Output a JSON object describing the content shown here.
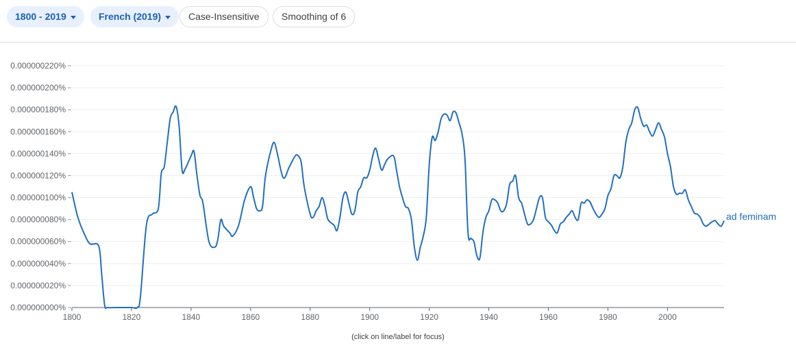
{
  "controls": {
    "date_range": "1800 - 2019",
    "corpus": "French (2019)",
    "case_toggle": "Case-Insensitive",
    "smoothing": "Smoothing of 6"
  },
  "colors": {
    "series": "#1f6fbf",
    "chip_fill": "#e8f0fe",
    "chip_text": "#1a5fb4",
    "grid": "#eeeeee"
  },
  "chart_data": {
    "type": "line",
    "title": "",
    "xlabel": "",
    "ylabel": "",
    "xlim": [
      1800,
      2019
    ],
    "ylim": [
      0,
      2.2e-07
    ],
    "x_ticks": [
      "1800",
      "1820",
      "1840",
      "1860",
      "1880",
      "1900",
      "1920",
      "1940",
      "1960",
      "1980",
      "2000"
    ],
    "y_ticks": [
      "0.000000000%",
      "0.000000020%",
      "0.000000040%",
      "0.000000060%",
      "0.000000080%",
      "0.000000100%",
      "0.000000120%",
      "0.000000140%",
      "0.000000160%",
      "0.000000180%",
      "0.000000200%",
      "0.000000220%"
    ],
    "grid": true,
    "y_unit": "percent",
    "series": [
      {
        "name": "ad feminam",
        "points": [
          [
            1800,
            1.05e-07
          ],
          [
            1802,
            8.2e-08
          ],
          [
            1804,
            6.8e-08
          ],
          [
            1806,
            5.8e-08
          ],
          [
            1809,
            5.6e-08
          ],
          [
            1810,
            3e-08
          ],
          [
            1811,
            2e-09
          ],
          [
            1812,
            0.0
          ],
          [
            1815,
            0.0
          ],
          [
            1820,
            0.0
          ],
          [
            1822,
            0.0
          ],
          [
            1823,
            1e-08
          ],
          [
            1825,
            7.5e-08
          ],
          [
            1827,
            8.5e-08
          ],
          [
            1829,
            9e-08
          ],
          [
            1830,
            1.22e-07
          ],
          [
            1831,
            1.28e-07
          ],
          [
            1832,
            1.5e-07
          ],
          [
            1833,
            1.72e-07
          ],
          [
            1834,
            1.78e-07
          ],
          [
            1835,
            1.83e-07
          ],
          [
            1836,
            1.65e-07
          ],
          [
            1837,
            1.25e-07
          ],
          [
            1838,
            1.26e-07
          ],
          [
            1840,
            1.38e-07
          ],
          [
            1841,
            1.42e-07
          ],
          [
            1842,
            1.2e-07
          ],
          [
            1843,
            1.02e-07
          ],
          [
            1844,
            9.5e-08
          ],
          [
            1846,
            6e-08
          ],
          [
            1848,
            5.5e-08
          ],
          [
            1849,
            6.2e-08
          ],
          [
            1850,
            8e-08
          ],
          [
            1851,
            7.4e-08
          ],
          [
            1853,
            6.8e-08
          ],
          [
            1854,
            6.5e-08
          ],
          [
            1856,
            7.5e-08
          ],
          [
            1858,
            9.8e-08
          ],
          [
            1860,
            1.1e-07
          ],
          [
            1861,
            1e-07
          ],
          [
            1862,
            9e-08
          ],
          [
            1863,
            8.8e-08
          ],
          [
            1864,
            9.2e-08
          ],
          [
            1865,
            1.2e-07
          ],
          [
            1867,
            1.45e-07
          ],
          [
            1868,
            1.5e-07
          ],
          [
            1869,
            1.4e-07
          ],
          [
            1871,
            1.18e-07
          ],
          [
            1873,
            1.28e-07
          ],
          [
            1875,
            1.38e-07
          ],
          [
            1876,
            1.38e-07
          ],
          [
            1877,
            1.32e-07
          ],
          [
            1878,
            1.1e-07
          ],
          [
            1880,
            8.5e-08
          ],
          [
            1881,
            8.2e-08
          ],
          [
            1882,
            8.8e-08
          ],
          [
            1883,
            9.2e-08
          ],
          [
            1884,
            1e-07
          ],
          [
            1885,
            9.2e-08
          ],
          [
            1886,
            8e-08
          ],
          [
            1888,
            7.5e-08
          ],
          [
            1889,
            7e-08
          ],
          [
            1890,
            8.2e-08
          ],
          [
            1891,
            1e-07
          ],
          [
            1892,
            1.05e-07
          ],
          [
            1893,
            9.5e-08
          ],
          [
            1894,
            8.5e-08
          ],
          [
            1895,
            8.8e-08
          ],
          [
            1896,
            1.05e-07
          ],
          [
            1897,
            1.1e-07
          ],
          [
            1898,
            1.18e-07
          ],
          [
            1899,
            1.18e-07
          ],
          [
            1900,
            1.25e-07
          ],
          [
            1901,
            1.38e-07
          ],
          [
            1902,
            1.45e-07
          ],
          [
            1903,
            1.35e-07
          ],
          [
            1904,
            1.25e-07
          ],
          [
            1905,
            1.3e-07
          ],
          [
            1906,
            1.35e-07
          ],
          [
            1908,
            1.38e-07
          ],
          [
            1909,
            1.25e-07
          ],
          [
            1910,
            1.1e-07
          ],
          [
            1911,
            1e-07
          ],
          [
            1912,
            9.2e-08
          ],
          [
            1913,
            9e-08
          ],
          [
            1914,
            8e-08
          ],
          [
            1915,
            5.5e-08
          ],
          [
            1916,
            4.3e-08
          ],
          [
            1917,
            5.5e-08
          ],
          [
            1918,
            6.5e-08
          ],
          [
            1919,
            8.2e-08
          ],
          [
            1920,
            1.3e-07
          ],
          [
            1921,
            1.55e-07
          ],
          [
            1922,
            1.52e-07
          ],
          [
            1923,
            1.6e-07
          ],
          [
            1924,
            1.72e-07
          ],
          [
            1925,
            1.76e-07
          ],
          [
            1926,
            1.75e-07
          ],
          [
            1927,
            1.7e-07
          ],
          [
            1928,
            1.78e-07
          ],
          [
            1929,
            1.77e-07
          ],
          [
            1930,
            1.68e-07
          ],
          [
            1931,
            1.58e-07
          ],
          [
            1932,
            1.35e-07
          ],
          [
            1933,
            6.8e-08
          ],
          [
            1934,
            6.3e-08
          ],
          [
            1935,
            6e-08
          ],
          [
            1936,
            4.7e-08
          ],
          [
            1937,
            4.5e-08
          ],
          [
            1938,
            6.8e-08
          ],
          [
            1939,
            8.2e-08
          ],
          [
            1940,
            8.8e-08
          ],
          [
            1941,
            9.8e-08
          ],
          [
            1942,
            9.8e-08
          ],
          [
            1943,
            9.5e-08
          ],
          [
            1944,
            8.8e-08
          ],
          [
            1945,
            8.8e-08
          ],
          [
            1946,
            9.5e-08
          ],
          [
            1947,
            1.12e-07
          ],
          [
            1948,
            1.15e-07
          ],
          [
            1949,
            1.2e-07
          ],
          [
            1950,
            1e-07
          ],
          [
            1951,
            9.5e-08
          ],
          [
            1952,
            8.5e-08
          ],
          [
            1953,
            7.6e-08
          ],
          [
            1954,
            7.6e-08
          ],
          [
            1955,
            8e-08
          ],
          [
            1956,
            9e-08
          ],
          [
            1957,
            1e-07
          ],
          [
            1958,
            1e-07
          ],
          [
            1959,
            8.2e-08
          ],
          [
            1960,
            7.8e-08
          ],
          [
            1961,
            7.5e-08
          ],
          [
            1962,
            7e-08
          ],
          [
            1963,
            6.8e-08
          ],
          [
            1964,
            7.6e-08
          ],
          [
            1965,
            7.8e-08
          ],
          [
            1966,
            8.2e-08
          ],
          [
            1967,
            8.5e-08
          ],
          [
            1968,
            8.8e-08
          ],
          [
            1969,
            8.2e-08
          ],
          [
            1970,
            8e-08
          ],
          [
            1971,
            9.5e-08
          ],
          [
            1972,
            9.5e-08
          ],
          [
            1973,
            9.8e-08
          ],
          [
            1974,
            9.6e-08
          ],
          [
            1975,
            9e-08
          ],
          [
            1976,
            8.5e-08
          ],
          [
            1977,
            8.2e-08
          ],
          [
            1978,
            8.5e-08
          ],
          [
            1979,
            9e-08
          ],
          [
            1980,
            1.02e-07
          ],
          [
            1981,
            1.08e-07
          ],
          [
            1982,
            1.2e-07
          ],
          [
            1983,
            1.2e-07
          ],
          [
            1984,
            1.18e-07
          ],
          [
            1985,
            1.28e-07
          ],
          [
            1986,
            1.5e-07
          ],
          [
            1987,
            1.62e-07
          ],
          [
            1988,
            1.68e-07
          ],
          [
            1989,
            1.8e-07
          ],
          [
            1990,
            1.82e-07
          ],
          [
            1991,
            1.72e-07
          ],
          [
            1992,
            1.65e-07
          ],
          [
            1993,
            1.66e-07
          ],
          [
            1994,
            1.6e-07
          ],
          [
            1995,
            1.56e-07
          ],
          [
            1996,
            1.62e-07
          ],
          [
            1997,
            1.68e-07
          ],
          [
            1998,
            1.62e-07
          ],
          [
            1999,
            1.55e-07
          ],
          [
            2000,
            1.4e-07
          ],
          [
            2001,
            1.28e-07
          ],
          [
            2002,
            1.1e-07
          ],
          [
            2003,
            1.03e-07
          ],
          [
            2004,
            1.04e-07
          ],
          [
            2005,
            1.04e-07
          ],
          [
            2006,
            1.07e-07
          ],
          [
            2007,
            9.8e-08
          ],
          [
            2008,
            9.2e-08
          ],
          [
            2009,
            8.6e-08
          ],
          [
            2010,
            8.5e-08
          ],
          [
            2011,
            8.2e-08
          ],
          [
            2012,
            7.6e-08
          ],
          [
            2013,
            7.4e-08
          ],
          [
            2014,
            7.6e-08
          ],
          [
            2015,
            7.8e-08
          ],
          [
            2016,
            7.9e-08
          ],
          [
            2017,
            7.6e-08
          ],
          [
            2018,
            7.4e-08
          ],
          [
            2019,
            7.9e-08
          ]
        ]
      }
    ],
    "annotation": "(click on line/label for focus)"
  }
}
